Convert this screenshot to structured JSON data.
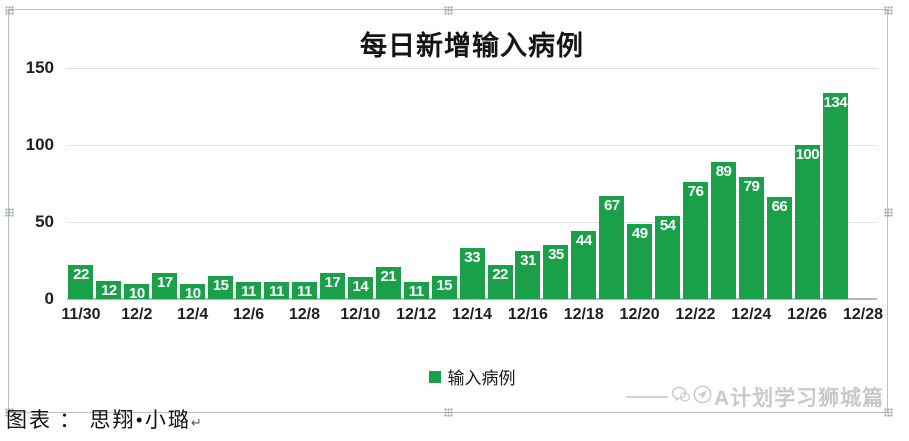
{
  "chart_data": {
    "type": "bar",
    "title": "每日新增输入病例",
    "categories": [
      "11/30",
      "12/1",
      "12/2",
      "12/3",
      "12/4",
      "12/5",
      "12/6",
      "12/7",
      "12/8",
      "12/9",
      "12/10",
      "12/11",
      "12/12",
      "12/13",
      "12/14",
      "12/15",
      "12/16",
      "12/17",
      "12/18",
      "12/19",
      "12/20",
      "12/21",
      "12/22",
      "12/23",
      "12/24",
      "12/25",
      "12/26",
      "12/27",
      "12/28"
    ],
    "values": [
      22,
      12,
      10,
      17,
      10,
      15,
      11,
      11,
      11,
      17,
      14,
      21,
      11,
      15,
      33,
      22,
      31,
      35,
      44,
      67,
      49,
      54,
      76,
      89,
      79,
      66,
      100,
      134,
      null
    ],
    "x_tick_labels": [
      "11/30",
      "12/2",
      "12/4",
      "12/6",
      "12/8",
      "12/10",
      "12/12",
      "12/14",
      "12/16",
      "12/18",
      "12/20",
      "12/22",
      "12/24",
      "12/26",
      "12/28"
    ],
    "ylim": [
      0,
      150
    ],
    "yticks": [
      0,
      50,
      100,
      150
    ],
    "grid": true,
    "legend_position": "bottom",
    "legend": [
      {
        "label": "输入病例",
        "color": "#1AA048"
      }
    ],
    "bar_color": "#1AA048",
    "data_label_color": "#FFFFFF"
  },
  "caption": {
    "text": "图表 ： 思翔•小璐",
    "return_mark": "↵"
  },
  "watermark": {
    "text": "A计划学习狮城篇",
    "icons": [
      "wechat-icon",
      "circle-logo-icon"
    ]
  }
}
